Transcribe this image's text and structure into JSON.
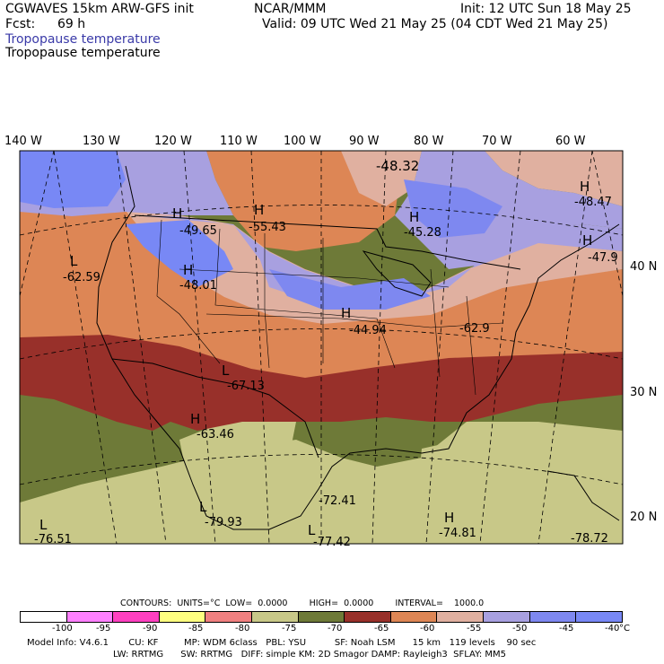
{
  "header": {
    "model": "CGWAVES 15km ARW-GFS init",
    "org": "NCAR/MMM",
    "init": "Init: 12 UTC Sun 18 May 25",
    "fcst_label": "Fcst:",
    "fcst_value": "69 h",
    "valid": "Valid: 09 UTC Wed 21 May 25 (04 CDT Wed 21 May 25)",
    "field1": "Tropopause temperature",
    "field2": "Tropopause temperature"
  },
  "lon_labels": [
    "140 W",
    "130 W",
    "120 W",
    "110 W",
    "100 W",
    "90 W",
    "80 W",
    "70 W",
    "60 W"
  ],
  "lat_labels": [
    "40 N",
    "30 N",
    "20 N"
  ],
  "map_labels": [
    {
      "t": "-48.32"
    },
    {
      "t": "-49.65"
    },
    {
      "t": "-55.43"
    },
    {
      "t": "-45.28"
    },
    {
      "t": "-48.47"
    },
    {
      "t": "-47.9"
    },
    {
      "t": "-62.59"
    },
    {
      "t": "-48.01"
    },
    {
      "t": "-44.94"
    },
    {
      "t": "-62.9"
    },
    {
      "t": "-67.13"
    },
    {
      "t": "-63.46"
    },
    {
      "t": "-72.41"
    },
    {
      "t": "-79.93"
    },
    {
      "t": "-76.51"
    },
    {
      "t": "-77.42"
    },
    {
      "t": "-74.81"
    },
    {
      "t": "-78.72"
    }
  ],
  "hl_markers": [
    "H",
    "H",
    "H",
    "H",
    "L",
    "H",
    "H",
    "L",
    "L",
    "H",
    "L",
    "H",
    "L",
    "H"
  ],
  "contours": {
    "text": "CONTOURS:  UNITS=°C  LOW=  0.0000        HIGH=  0.0000        INTERVAL=    1000.0"
  },
  "colorbar": {
    "colors": [
      "#ffffff",
      "#ff80ff",
      "#ff40c0",
      "#ffff80",
      "#f08080",
      "#c8c888",
      "#6e7a38",
      "#98302a",
      "#dd8655",
      "#e0b0a0",
      "#a8a0e0",
      "#7e88f0",
      "#7888f5"
    ],
    "ticks": [
      "-100",
      "-95",
      "-90",
      "-85",
      "-80",
      "-75",
      "-70",
      "-65",
      "-60",
      "-55",
      "-50",
      "-45",
      "-40"
    ],
    "unit": "°C"
  },
  "footer": {
    "line1": "Model Info: V4.6.1       CU: KF         MP: WDM 6class   PBL: YSU          SF: Noah LSM      15 km   119 levels    90 sec",
    "line2": "LW: RRTMG      SW: RRTMG   DIFF: simple KM: 2D Smagor DAMP: Rayleigh3  SFLAY: MM5"
  }
}
